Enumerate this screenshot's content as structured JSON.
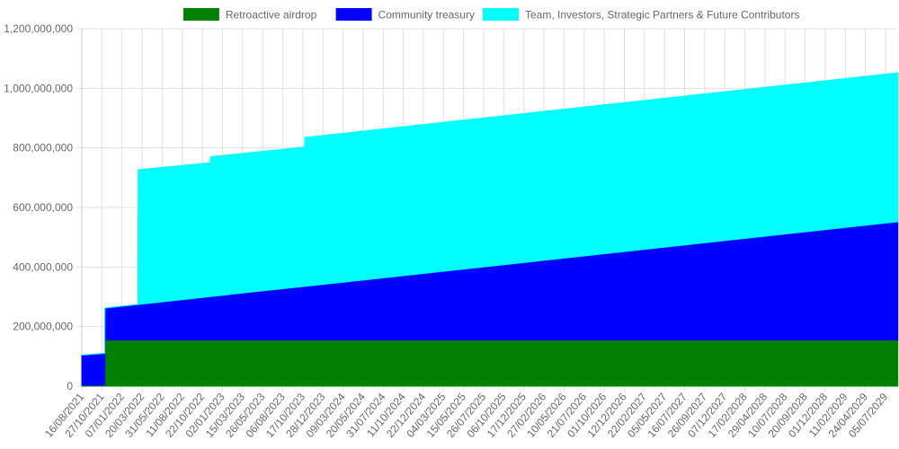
{
  "chart_data": {
    "type": "area",
    "stacked": true,
    "title": "",
    "xlabel": "",
    "ylabel": "",
    "ylim": [
      0,
      1200000000
    ],
    "y_ticks": [
      "0",
      "200,000,000",
      "400,000,000",
      "600,000,000",
      "800,000,000",
      "1,000,000,000",
      "1,200,000,000"
    ],
    "y_tick_values": [
      0,
      200000000,
      400000000,
      600000000,
      800000000,
      1000000000,
      1200000000
    ],
    "x_tick_labels": [
      "16/08/2021",
      "27/10/2021",
      "07/01/2022",
      "20/03/2022",
      "31/05/2022",
      "11/08/2022",
      "22/10/2022",
      "02/01/2023",
      "15/03/2023",
      "26/05/2023",
      "06/08/2023",
      "17/10/2023",
      "28/12/2023",
      "09/03/2024",
      "20/05/2024",
      "31/07/2024",
      "11/10/2024",
      "22/12/2024",
      "04/03/2025",
      "15/05/2025",
      "26/07/2025",
      "06/10/2025",
      "17/12/2025",
      "27/02/2026",
      "10/05/2026",
      "21/07/2026",
      "01/10/2026",
      "12/12/2026",
      "22/02/2027",
      "05/05/2027",
      "16/07/2027",
      "26/09/2027",
      "07/12/2027",
      "17/02/2028",
      "29/04/2028",
      "10/07/2028",
      "20/09/2028",
      "01/12/2028",
      "11/02/2029",
      "24/04/2029",
      "05/07/2029"
    ],
    "x_range": [
      "2021-08-16",
      "2029-08-18"
    ],
    "grid": true,
    "legend_position": "top",
    "x": [
      "2021-08-16",
      "2021-11-06",
      "2021-11-07",
      "2022-03-05",
      "2022-03-06",
      "2022-11-19",
      "2022-11-20",
      "2023-10-23",
      "2023-10-24",
      "2029-08-18"
    ],
    "series": [
      {
        "name": "Retroactive airdrop",
        "color": "#008000",
        "values": [
          3000000,
          3000000,
          155000000,
          155000000,
          155000000,
          155000000,
          155000000,
          155000000,
          155000000,
          155000000
        ]
      },
      {
        "name": "Community treasury",
        "color": "#0000ff",
        "values": [
          101000000,
          107000000,
          107000000,
          119000000,
          119000000,
          146000000,
          146000000,
          180000000,
          180000000,
          397000000
        ]
      },
      {
        "name": "Team, Investors, Strategic Partners & Future Contributors",
        "color": "#00ffff",
        "values": [
          0,
          0,
          0,
          0,
          453000000,
          449000000,
          469000000,
          468000000,
          500000000,
          500000000
        ]
      }
    ]
  }
}
